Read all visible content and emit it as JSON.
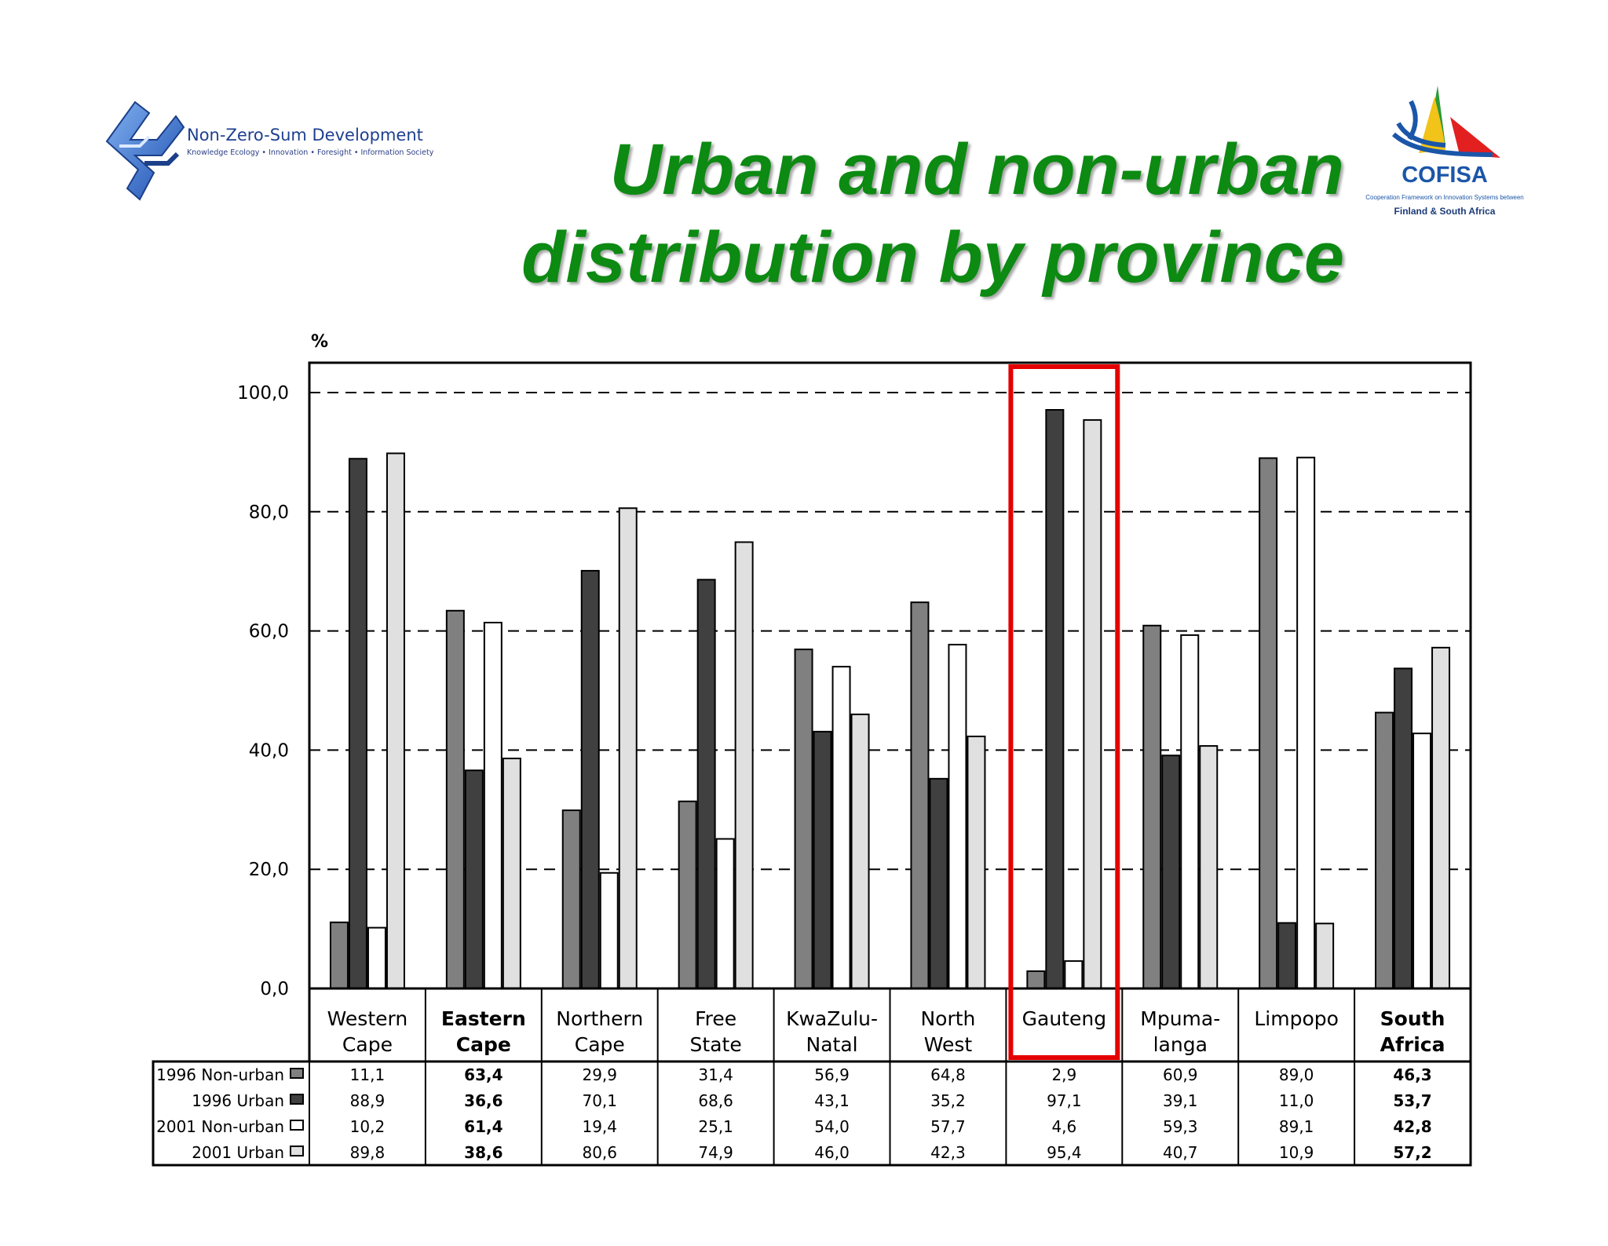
{
  "title_line1": "Urban and non-urban",
  "title_line2": "distribution by province",
  "logo_left": {
    "icon": "nzsd-logo-icon",
    "name": "Non-Zero-Sum Development",
    "tagline": "Knowledge Ecology • Innovation • Foresight • Information Society"
  },
  "logo_right": {
    "icon": "cofisa-sail-icon",
    "name": "COFISA",
    "tagline": "Cooperation Framework on Innovation Systems between",
    "tagline2": "Finland & South Africa"
  },
  "colors": {
    "title": "#0c8a12",
    "highlight": "#e50000",
    "s1996_non_urban": "#808080",
    "s1996_urban": "#404040",
    "s2001_non_urban": "#ffffff",
    "s2001_urban": "#e0e0e0"
  },
  "chart_data": {
    "type": "bar",
    "ylabel": "%",
    "ylim": [
      0,
      100
    ],
    "yticks": [
      "0,0",
      "20,0",
      "40,0",
      "60,0",
      "80,0",
      "100,0"
    ],
    "grid": "dashed horizontal",
    "legend": "table rows below chart",
    "highlighted_category": "Gauteng",
    "categories": [
      [
        "Western",
        "Cape"
      ],
      [
        "Eastern",
        "Cape"
      ],
      [
        "Northern",
        "Cape"
      ],
      [
        "Free",
        "State"
      ],
      [
        "KwaZulu-",
        "Natal"
      ],
      [
        "North",
        "West"
      ],
      [
        "Gauteng"
      ],
      [
        "Mpuma-",
        "langa"
      ],
      [
        "Limpopo"
      ],
      [
        "South",
        "Africa"
      ]
    ],
    "bold_categories": [
      1,
      9
    ],
    "series": [
      {
        "name": "1996 Non-urban",
        "color": "#808080",
        "values": [
          11.1,
          63.4,
          29.9,
          31.4,
          56.9,
          64.8,
          2.9,
          60.9,
          89.0,
          46.3
        ],
        "labels": [
          "11,1",
          "63,4",
          "29,9",
          "31,4",
          "56,9",
          "64,8",
          "2,9",
          "60,9",
          "89,0",
          "46,3"
        ]
      },
      {
        "name": "1996 Urban",
        "color": "#404040",
        "values": [
          88.9,
          36.6,
          70.1,
          68.6,
          43.1,
          35.2,
          97.1,
          39.1,
          11.0,
          53.7
        ],
        "labels": [
          "88,9",
          "36,6",
          "70,1",
          "68,6",
          "43,1",
          "35,2",
          "97,1",
          "39,1",
          "11,0",
          "53,7"
        ]
      },
      {
        "name": "2001 Non-urban",
        "color": "#ffffff",
        "values": [
          10.2,
          61.4,
          19.4,
          25.1,
          54.0,
          57.7,
          4.6,
          59.3,
          89.1,
          42.8
        ],
        "labels": [
          "10,2",
          "61,4",
          "19,4",
          "25,1",
          "54,0",
          "57,7",
          "4,6",
          "59,3",
          "89,1",
          "42,8"
        ]
      },
      {
        "name": "2001 Urban",
        "color": "#e0e0e0",
        "values": [
          89.8,
          38.6,
          80.6,
          74.9,
          46.0,
          42.3,
          95.4,
          40.7,
          10.9,
          57.2
        ],
        "labels": [
          "89,8",
          "38,6",
          "80,6",
          "74,9",
          "46,0",
          "42,3",
          "95,4",
          "40,7",
          "10,9",
          "57,2"
        ]
      }
    ]
  }
}
